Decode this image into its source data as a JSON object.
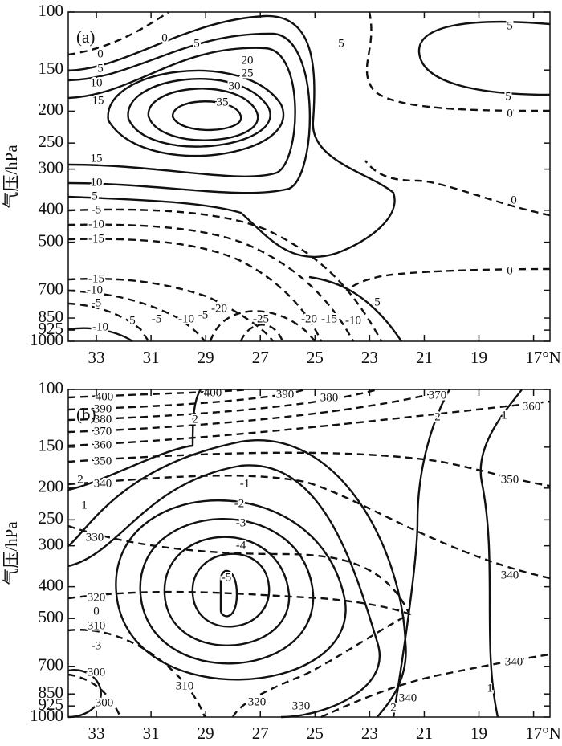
{
  "chart_data": [
    {
      "type": "contour",
      "panel_label": "(a)",
      "y_label": "气压/hPa",
      "ylim": [
        1000,
        100
      ],
      "ylog": true,
      "yticks": [
        100,
        150,
        200,
        250,
        300,
        400,
        500,
        700,
        850,
        925,
        1000
      ],
      "xlim": [
        34.03,
        16.4
      ],
      "xticks": [
        33,
        31,
        29,
        27,
        25,
        23,
        21,
        19,
        {
          "value": 17,
          "label": "17°N"
        }
      ],
      "contour_labels": [
        0,
        5,
        5,
        5,
        0,
        5,
        10,
        15,
        20,
        25,
        30,
        35,
        5,
        0,
        15,
        10,
        5,
        -5,
        -10,
        -15,
        0,
        0,
        -15,
        -10,
        -5,
        -10,
        5,
        -5,
        -10,
        -5,
        -20,
        -25,
        -20,
        -15,
        -10,
        5
      ]
    },
    {
      "type": "contour",
      "panel_label": "(b)",
      "y_label": "气压/hPa",
      "ylim": [
        1000,
        100
      ],
      "ylog": true,
      "yticks": [
        100,
        150,
        200,
        250,
        300,
        400,
        500,
        700,
        850,
        925,
        1000
      ],
      "xlim": [
        34.03,
        16.4
      ],
      "xticks": [
        33,
        31,
        29,
        27,
        25,
        23,
        21,
        19,
        {
          "value": 17,
          "label": "17°N"
        }
      ],
      "contour_labels": [
        400,
        400,
        390,
        380,
        370,
        360,
        390,
        380,
        370,
        360,
        350,
        340,
        2,
        2,
        1,
        350,
        2,
        1,
        -1,
        -2,
        -3,
        -4,
        -5,
        330,
        340,
        320,
        0,
        310,
        -3,
        300,
        340,
        340,
        1,
        2,
        310,
        320,
        330,
        300
      ]
    }
  ]
}
